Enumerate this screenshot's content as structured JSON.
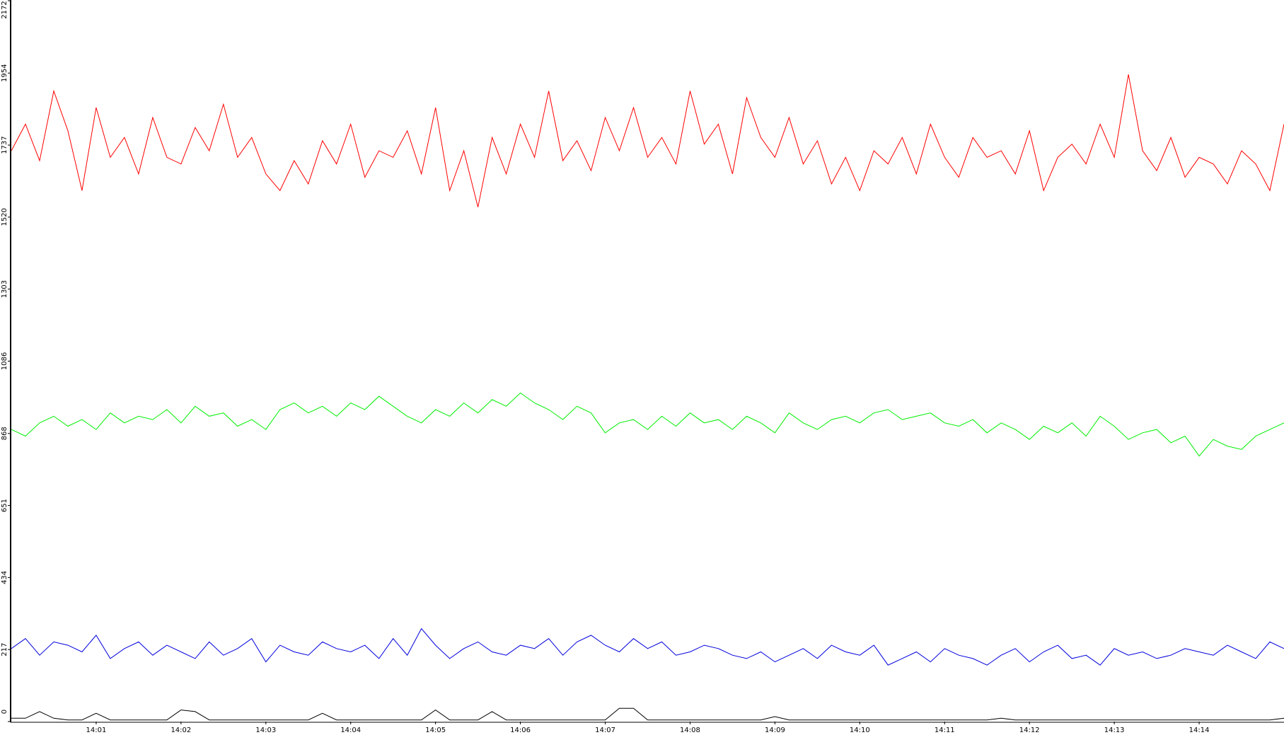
{
  "chart_data": {
    "type": "line",
    "categories": [
      null,
      null,
      null,
      null,
      null,
      null,
      "14:01",
      null,
      null,
      null,
      null,
      null,
      "14:02",
      null,
      null,
      null,
      null,
      null,
      "14:03",
      null,
      null,
      null,
      null,
      null,
      "14:04",
      null,
      null,
      null,
      null,
      null,
      "14:05",
      null,
      null,
      null,
      null,
      null,
      "14:06",
      null,
      null,
      null,
      null,
      null,
      "14:07",
      null,
      null,
      null,
      null,
      null,
      "14:08",
      null,
      null,
      null,
      null,
      null,
      "14:09",
      null,
      null,
      null,
      null,
      null,
      "14:10",
      null,
      null,
      null,
      null,
      null,
      "14:11",
      null,
      null,
      null,
      null,
      null,
      "14:12",
      null,
      null,
      null,
      null,
      null,
      "14:13",
      null,
      null,
      null,
      null,
      null,
      "14:14",
      null,
      null,
      null,
      null,
      null,
      null
    ],
    "series": [
      {
        "color": "#ff0000",
        "values": [
          1720,
          1800,
          1690,
          1900,
          1780,
          1600,
          1850,
          1700,
          1760,
          1650,
          1820,
          1700,
          1680,
          1790,
          1720,
          1860,
          1700,
          1760,
          1650,
          1600,
          1690,
          1620,
          1750,
          1680,
          1800,
          1640,
          1720,
          1700,
          1780,
          1650,
          1850,
          1600,
          1720,
          1550,
          1760,
          1650,
          1800,
          1700,
          1900,
          1690,
          1750,
          1660,
          1820,
          1720,
          1850,
          1700,
          1760,
          1680,
          1900,
          1740,
          1800,
          1650,
          1880,
          1760,
          1700,
          1820,
          1680,
          1750,
          1620,
          1700,
          1600,
          1720,
          1680,
          1760,
          1650,
          1800,
          1700,
          1640,
          1760,
          1700,
          1720,
          1650,
          1780,
          1600,
          1700,
          1740,
          1680,
          1800,
          1700,
          1950,
          1720,
          1660,
          1760,
          1640,
          1700,
          1680,
          1620,
          1720,
          1680,
          1600,
          1800
        ]
      },
      {
        "color": "#00ee00",
        "values": [
          880,
          860,
          900,
          920,
          890,
          910,
          880,
          930,
          900,
          920,
          910,
          940,
          900,
          950,
          920,
          930,
          890,
          910,
          880,
          940,
          960,
          930,
          950,
          920,
          960,
          940,
          980,
          950,
          920,
          900,
          940,
          920,
          960,
          930,
          970,
          950,
          990,
          960,
          940,
          910,
          950,
          930,
          870,
          900,
          910,
          880,
          920,
          890,
          930,
          900,
          910,
          880,
          920,
          900,
          870,
          930,
          900,
          880,
          910,
          920,
          900,
          930,
          940,
          910,
          920,
          930,
          900,
          890,
          910,
          870,
          900,
          880,
          850,
          890,
          870,
          900,
          860,
          920,
          890,
          850,
          870,
          880,
          840,
          860,
          800,
          850,
          830,
          820,
          860,
          880,
          900
        ]
      },
      {
        "color": "#0000dd",
        "values": [
          220,
          250,
          200,
          240,
          230,
          210,
          260,
          190,
          220,
          240,
          200,
          230,
          210,
          190,
          240,
          200,
          220,
          250,
          180,
          230,
          210,
          200,
          240,
          220,
          210,
          230,
          190,
          250,
          200,
          280,
          230,
          190,
          220,
          240,
          210,
          200,
          230,
          220,
          250,
          200,
          240,
          260,
          230,
          210,
          250,
          220,
          240,
          200,
          210,
          230,
          220,
          200,
          190,
          210,
          180,
          200,
          220,
          190,
          230,
          210,
          200,
          230,
          170,
          190,
          210,
          180,
          220,
          200,
          190,
          170,
          200,
          220,
          180,
          210,
          230,
          190,
          200,
          170,
          220,
          200,
          210,
          190,
          200,
          220,
          210,
          200,
          230,
          210,
          190,
          240,
          220
        ]
      },
      {
        "color": "#000000",
        "values": [
          10,
          10,
          30,
          10,
          5,
          5,
          25,
          5,
          5,
          5,
          5,
          5,
          35,
          30,
          5,
          5,
          5,
          5,
          5,
          5,
          5,
          5,
          25,
          5,
          5,
          5,
          5,
          5,
          5,
          5,
          35,
          5,
          5,
          5,
          30,
          5,
          5,
          5,
          5,
          5,
          5,
          5,
          5,
          40,
          40,
          5,
          5,
          5,
          5,
          5,
          5,
          5,
          5,
          5,
          15,
          5,
          5,
          5,
          5,
          5,
          5,
          5,
          5,
          5,
          5,
          5,
          5,
          5,
          5,
          5,
          10,
          5,
          5,
          5,
          5,
          5,
          5,
          5,
          5,
          5,
          5,
          5,
          5,
          5,
          5,
          5,
          5,
          5,
          5,
          5,
          10
        ]
      }
    ],
    "ylim": [
      0,
      2172
    ],
    "yticks": [
      0,
      217,
      434,
      651,
      868,
      1086,
      1303,
      1520,
      1737,
      1954,
      2172
    ]
  }
}
